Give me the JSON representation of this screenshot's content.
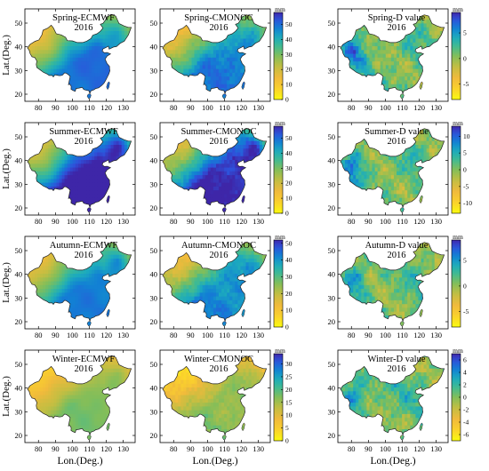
{
  "figure": {
    "x_axis_label": "Lon.(Deg.)",
    "y_axis_label": "Lat.(Deg.)",
    "x_ticks": [
      "80",
      "90",
      "100",
      "110",
      "120",
      "130"
    ],
    "y_ticks": [
      "20",
      "30",
      "40",
      "50"
    ],
    "colorbar_unit": "mm"
  },
  "rows": [
    {
      "season": "Spring",
      "panels": [
        {
          "title": "Spring-ECMWF",
          "year": "2016",
          "kind": "ecmwf"
        },
        {
          "title": "Spring-CMONOC",
          "year": "2016",
          "kind": "cmonoc"
        },
        {
          "title": "Spring-D value",
          "year": "2016",
          "kind": "dvalue"
        }
      ],
      "colorbars": [
        {
          "ticks": [
            "0",
            "10",
            "20",
            "30",
            "40",
            "50"
          ],
          "min": 0,
          "max": 58,
          "palette": "parula"
        },
        {
          "ticks": [
            "-5",
            "0",
            "5"
          ],
          "min": -8,
          "max": 9,
          "palette": "parula"
        }
      ]
    },
    {
      "season": "Summer",
      "panels": [
        {
          "title": "Summer-ECMWF",
          "year": "2016",
          "kind": "ecmwf"
        },
        {
          "title": "Summer-CMONOC",
          "year": "2016",
          "kind": "cmonoc"
        },
        {
          "title": "Summer-D value",
          "year": "2016",
          "kind": "dvalue"
        }
      ],
      "colorbars": [
        {
          "ticks": [
            "0",
            "10",
            "20",
            "30",
            "40",
            "50"
          ],
          "min": 0,
          "max": 58,
          "palette": "parula"
        },
        {
          "ticks": [
            "-10",
            "-5",
            "0",
            "5",
            "10"
          ],
          "min": -13,
          "max": 13,
          "palette": "parula"
        }
      ]
    },
    {
      "season": "Autumn",
      "panels": [
        {
          "title": "Autumn-ECMWF",
          "year": "2016",
          "kind": "ecmwf"
        },
        {
          "title": "Autumn-CMONOC",
          "year": "2016",
          "kind": "cmonoc"
        },
        {
          "title": "Autumn-D value",
          "year": "2016",
          "kind": "dvalue"
        }
      ],
      "colorbars": [
        {
          "ticks": [
            "0",
            "10",
            "20",
            "30",
            "40",
            "50"
          ],
          "min": 0,
          "max": 52,
          "palette": "parula"
        },
        {
          "ticks": [
            "-5",
            "0",
            "5"
          ],
          "min": -8,
          "max": 9,
          "palette": "parula"
        }
      ]
    },
    {
      "season": "Winter",
      "panels": [
        {
          "title": "Winter-ECMWF",
          "year": "2016",
          "kind": "ecmwf"
        },
        {
          "title": "Winter-CMONOC",
          "year": "2016",
          "kind": "cmonoc"
        },
        {
          "title": "Winter-D value",
          "year": "2016",
          "kind": "dvalue"
        }
      ],
      "colorbars": [
        {
          "ticks": [
            "0",
            "5",
            "10",
            "15",
            "20",
            "25",
            "30"
          ],
          "min": 0,
          "max": 34,
          "palette": "parula"
        },
        {
          "ticks": [
            "-6",
            "-4",
            "-2",
            "0",
            "2",
            "4",
            "6"
          ],
          "min": -7,
          "max": 7,
          "palette": "parula"
        }
      ]
    }
  ]
}
